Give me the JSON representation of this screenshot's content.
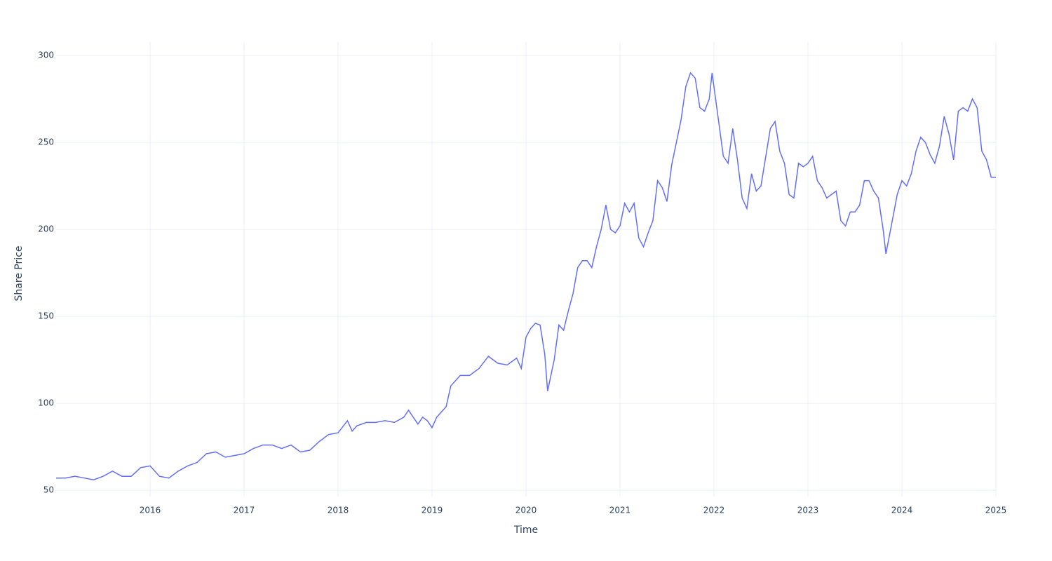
{
  "chart_data": {
    "type": "line",
    "x_label": "Time",
    "y_label": "Share Price",
    "x": [
      2015.0,
      2015.1,
      2015.2,
      2015.3,
      2015.4,
      2015.5,
      2015.6,
      2015.7,
      2015.8,
      2015.9,
      2016.0,
      2016.1,
      2016.2,
      2016.3,
      2016.4,
      2016.5,
      2016.6,
      2016.7,
      2016.8,
      2016.9,
      2017.0,
      2017.1,
      2017.2,
      2017.3,
      2017.4,
      2017.5,
      2017.6,
      2017.7,
      2017.8,
      2017.9,
      2018.0,
      2018.1,
      2018.15,
      2018.2,
      2018.3,
      2018.4,
      2018.5,
      2018.6,
      2018.7,
      2018.75,
      2018.8,
      2018.85,
      2018.9,
      2018.95,
      2019.0,
      2019.05,
      2019.15,
      2019.2,
      2019.3,
      2019.4,
      2019.5,
      2019.6,
      2019.7,
      2019.8,
      2019.9,
      2019.95,
      2020.0,
      2020.05,
      2020.1,
      2020.15,
      2020.2,
      2020.23,
      2020.3,
      2020.35,
      2020.4,
      2020.45,
      2020.5,
      2020.55,
      2020.6,
      2020.65,
      2020.7,
      2020.75,
      2020.8,
      2020.85,
      2020.9,
      2020.95,
      2021.0,
      2021.05,
      2021.1,
      2021.15,
      2021.2,
      2021.25,
      2021.3,
      2021.35,
      2021.4,
      2021.45,
      2021.5,
      2021.55,
      2021.6,
      2021.65,
      2021.7,
      2021.75,
      2021.8,
      2021.85,
      2021.9,
      2021.95,
      2021.98,
      2022.05,
      2022.1,
      2022.15,
      2022.2,
      2022.25,
      2022.3,
      2022.35,
      2022.4,
      2022.45,
      2022.5,
      2022.6,
      2022.65,
      2022.7,
      2022.75,
      2022.8,
      2022.85,
      2022.9,
      2022.95,
      2023.0,
      2023.05,
      2023.1,
      2023.15,
      2023.2,
      2023.3,
      2023.35,
      2023.4,
      2023.45,
      2023.5,
      2023.55,
      2023.6,
      2023.65,
      2023.7,
      2023.75,
      2023.8,
      2023.83,
      2023.88,
      2023.95,
      2024.0,
      2024.05,
      2024.1,
      2024.15,
      2024.2,
      2024.25,
      2024.3,
      2024.35,
      2024.4,
      2024.45,
      2024.5,
      2024.55,
      2024.6,
      2024.65,
      2024.7,
      2024.75,
      2024.8,
      2024.85,
      2024.9,
      2024.95,
      2025.0
    ],
    "series": [
      {
        "color": "#636efa",
        "values": [
          57,
          57,
          58,
          57,
          56,
          58,
          61,
          58,
          58,
          63,
          64,
          58,
          57,
          61,
          64,
          66,
          71,
          72,
          69,
          70,
          71,
          74,
          76,
          76,
          74,
          76,
          72,
          73,
          78,
          82,
          83,
          90,
          84,
          87,
          89,
          89,
          90,
          89,
          92,
          96,
          92,
          88,
          92,
          90,
          86,
          92,
          98,
          110,
          116,
          116,
          120,
          127,
          123,
          122,
          126,
          120,
          138,
          143,
          146,
          145,
          128,
          107,
          125,
          145,
          142,
          153,
          163,
          178,
          182,
          182,
          178,
          190,
          200,
          214,
          200,
          198,
          202,
          215,
          210,
          215,
          195,
          190,
          198,
          205,
          228,
          224,
          216,
          237,
          250,
          263,
          282,
          290,
          287,
          270,
          268,
          275,
          290,
          262,
          242,
          238,
          258,
          240,
          218,
          212,
          232,
          222,
          225,
          258,
          262,
          245,
          238,
          220,
          218,
          238,
          236,
          238,
          242,
          228,
          224,
          218,
          222,
          205,
          202,
          210,
          210,
          214,
          228,
          228,
          222,
          218,
          200,
          186,
          200,
          220,
          228,
          225,
          232,
          245,
          253,
          250,
          243,
          238,
          248,
          265,
          255,
          240,
          268,
          270,
          268,
          275,
          270,
          245,
          240,
          230,
          230
        ]
      }
    ],
    "xlim": [
      2015,
      2025
    ],
    "xticks": [
      2016,
      2017,
      2018,
      2019,
      2020,
      2021,
      2022,
      2023,
      2024,
      2025
    ],
    "ylim": [
      46.4,
      307.7
    ],
    "yticks": [
      50,
      100,
      150,
      200,
      250,
      300
    ],
    "grid": true
  }
}
